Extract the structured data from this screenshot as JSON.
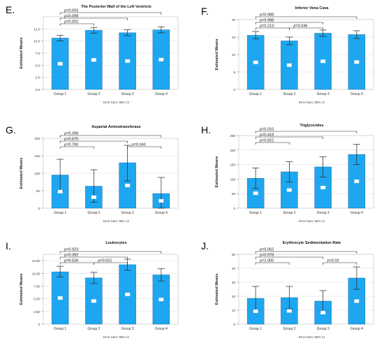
{
  "figure": {
    "error_bar_note": "Error bars: 95% CI",
    "y_axis_label": "Estimated Means",
    "bar_color": "#1ea7f0",
    "bar_edge_color": "#0a5d94",
    "label_box_color": "#ffffff"
  },
  "chart_data": [
    {
      "panel": "E.",
      "type": "bar",
      "title": "The Posterior Wall of the Left Ventricle",
      "ylabel": "Estimated Means",
      "categories": [
        "Group 1",
        "Group 2",
        "Group 3",
        "Group 4"
      ],
      "values": [
        10.6,
        12.2,
        11.7,
        12.3
      ],
      "ci": [
        [
          10.0,
          11.2
        ],
        [
          11.6,
          12.8
        ],
        [
          11.1,
          12.3
        ],
        [
          11.7,
          12.9
        ]
      ],
      "yticks": [
        "0.0",
        "2.5",
        "5.0",
        "7.5",
        "10.0",
        "12.5"
      ],
      "ylim": [
        0,
        15
      ],
      "comparisons": [
        {
          "text": "p=0.002",
          "from": 1,
          "to": 2
        },
        {
          "text": "p=0.098",
          "from": 1,
          "to": 3
        },
        {
          "text": "p=0.003",
          "from": 1,
          "to": 4
        }
      ],
      "grid": true
    },
    {
      "panel": "F.",
      "type": "bar",
      "title": "Inferior Vena Cava",
      "ylabel": "Estimated Means",
      "categories": [
        "Group 1",
        "Group 2",
        "Group 3",
        "Group 4"
      ],
      "values": [
        15.5,
        13.9,
        16.1,
        15.7
      ],
      "ci": [
        [
          14.5,
          16.6
        ],
        [
          12.8,
          15.0
        ],
        [
          15.2,
          17.0
        ],
        [
          14.6,
          16.8
        ]
      ],
      "yticks": [
        "0",
        "5",
        "10",
        "15",
        "20"
      ],
      "ylim": [
        0,
        20
      ],
      "comparisons": [
        {
          "text": "p=0.988",
          "from": 1,
          "to": 4
        },
        {
          "text": "p=0.998",
          "from": 1,
          "to": 3
        },
        {
          "text": "p=0.213",
          "from": 1,
          "to": 2
        },
        {
          "text": "p=0.046",
          "from": 2,
          "to": 3
        }
      ],
      "grid": true
    },
    {
      "panel": "G.",
      "type": "bar",
      "title": "Aspartat Aminotransferase",
      "ylabel": "Estimated Means",
      "categories": [
        "Group 1",
        "Group 2",
        "Group 3",
        "Group 4"
      ],
      "values": [
        95,
        63,
        130,
        42
      ],
      "ci": [
        [
          50,
          140
        ],
        [
          17,
          110
        ],
        [
          78,
          180
        ],
        [
          0,
          88
        ]
      ],
      "yticks": [
        "0",
        "50",
        "100",
        "150",
        "200"
      ],
      "ylim": [
        0,
        200
      ],
      "comparisons": [
        {
          "text": "p=0.398",
          "from": 1,
          "to": 4
        },
        {
          "text": "p=0.670",
          "from": 1,
          "to": 3
        },
        {
          "text": "p=0.040",
          "from": 3,
          "to": 4
        },
        {
          "text": "p=0.790",
          "from": 1,
          "to": 2
        }
      ],
      "grid": true
    },
    {
      "panel": "H.",
      "type": "bar",
      "title": "Triglycerides",
      "ylabel": "Estimated Means",
      "categories": [
        "Group 1",
        "Group 2",
        "Group 3",
        "Group 4"
      ],
      "values": [
        103,
        125,
        142,
        185
      ],
      "ci": [
        [
          68,
          138
        ],
        [
          90,
          160
        ],
        [
          107,
          177
        ],
        [
          150,
          220
        ]
      ],
      "yticks": [
        "0",
        "50",
        "100",
        "150",
        "200",
        "250"
      ],
      "ylim": [
        0,
        250
      ],
      "comparisons": [
        {
          "text": "p=0.010",
          "from": 1,
          "to": 4
        },
        {
          "text": "p=0.418",
          "from": 1,
          "to": 3
        },
        {
          "text": "p=0.822",
          "from": 1,
          "to": 2
        }
      ],
      "grid": true
    },
    {
      "panel": "I.",
      "type": "bar",
      "title": "Leukocytes",
      "ylabel": "Estimated Means",
      "categories": [
        "Group 1",
        "Group 2",
        "Group 3",
        "Group 4"
      ],
      "values": [
        10.3,
        9.1,
        11.7,
        9.7
      ],
      "ci": [
        [
          9.3,
          11.4
        ],
        [
          8.0,
          10.2
        ],
        [
          10.6,
          12.8
        ],
        [
          8.5,
          10.9
        ]
      ],
      "yticks": [
        "0",
        "2.50",
        "5.00",
        "7.50",
        "10.00",
        "12.50"
      ],
      "ylim": [
        0,
        13.75
      ],
      "comparisons": [
        {
          "text": "p=0.923",
          "from": 1,
          "to": 4
        },
        {
          "text": "p=0.392",
          "from": 1,
          "to": 3
        },
        {
          "text": "p=0.526",
          "from": 1,
          "to": 2
        },
        {
          "text": "p=0.021",
          "from": 2,
          "to": 3
        }
      ],
      "grid": true
    },
    {
      "panel": "J.",
      "type": "bar",
      "title": "Erythrocyte Sedimentation Rate",
      "ylabel": "Estimated Means",
      "categories": [
        "Group 1",
        "Group 2",
        "Group 3",
        "Group 4"
      ],
      "values": [
        18.5,
        19,
        16.5,
        33
      ],
      "ci": [
        [
          10,
          27
        ],
        [
          11,
          27
        ],
        [
          9,
          24
        ],
        [
          25,
          41
        ]
      ],
      "yticks": [
        "0",
        "10",
        "20",
        "30",
        "40",
        "50"
      ],
      "ylim": [
        0,
        50
      ],
      "comparisons": [
        {
          "text": "p=0.062",
          "from": 1,
          "to": 4
        },
        {
          "text": "p=0.978",
          "from": 1,
          "to": 3
        },
        {
          "text": "p=0.02",
          "from": 3,
          "to": 4
        },
        {
          "text": "p=1.000",
          "from": 1,
          "to": 2
        }
      ],
      "grid": true
    }
  ]
}
